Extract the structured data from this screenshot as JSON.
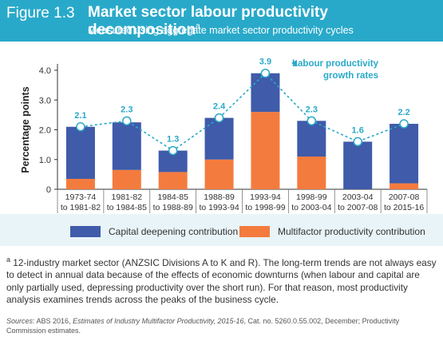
{
  "header": {
    "figure_number": "Figure 1.3",
    "title": "Market sector labour productivity decomposition",
    "title_note_marker": "a",
    "subtitle": "Measured using aggregate market sector productivity cycles"
  },
  "chart_data": {
    "type": "bar",
    "stacked": true,
    "categories": [
      [
        "1973-74",
        "to 1981-82"
      ],
      [
        "1981-82",
        "to 1984-85"
      ],
      [
        "1984-85",
        "to 1988-89"
      ],
      [
        "1988-89",
        "to 1993-94"
      ],
      [
        "1993-94",
        "to 1998-99"
      ],
      [
        "1998-99",
        "to 2003-04"
      ],
      [
        "2003-04",
        "to 2007-08"
      ],
      [
        "2007-08",
        "to 2015-16"
      ]
    ],
    "series": [
      {
        "name": "Capital deepening contribution",
        "color": "#3f5ba9",
        "values": [
          1.75,
          1.6,
          0.72,
          1.4,
          1.3,
          1.2,
          1.6,
          2.0
        ]
      },
      {
        "name": "Multifactor productivity contribution",
        "color": "#f47b3e",
        "values": [
          0.35,
          0.65,
          0.58,
          1.0,
          2.6,
          1.1,
          0.0,
          0.2
        ]
      }
    ],
    "line": {
      "name_lines": [
        "Labour productivity",
        "growth rates"
      ],
      "color": "#29a9c9",
      "values": [
        2.1,
        2.3,
        1.3,
        2.4,
        3.9,
        2.3,
        1.6,
        2.2
      ],
      "labels": [
        "2.1",
        "2.3",
        "1.3",
        "2.4",
        "3.9",
        "2.3",
        "1.6",
        "2.2"
      ]
    },
    "ylabel": "Percentage points",
    "ylim": [
      0,
      4.0
    ],
    "yticks": [
      0,
      1.0,
      2.0,
      3.0,
      4.0
    ],
    "ytick_labels": [
      "0",
      "1.0",
      "2.0",
      "3.0",
      "4.0"
    ]
  },
  "legend": {
    "items": [
      {
        "label": "Capital deepening contribution",
        "color": "#3f5ba9"
      },
      {
        "label": "Multifactor productivity contribution",
        "color": "#f47b3e"
      }
    ]
  },
  "note": {
    "marker": "a",
    "text": "12-industry market sector (ANZSIC Divisions A to K and R). The long-term trends are not always easy to detect in annual data because of the effects of economic downturns (when labour and capital are only partially used, depressing productivity over the short run). For that reason, most productivity analysis examines trends across the peaks of the business cycle."
  },
  "sources": {
    "prefix": "Sources",
    "text_a": ": ABS 2016, ",
    "title_italic": "Estimates of Industry Multifactor Productivity, 2015-16",
    "text_b": ", Cat. no. 5260.0.55.002, December; Productivity Commission estimates."
  }
}
